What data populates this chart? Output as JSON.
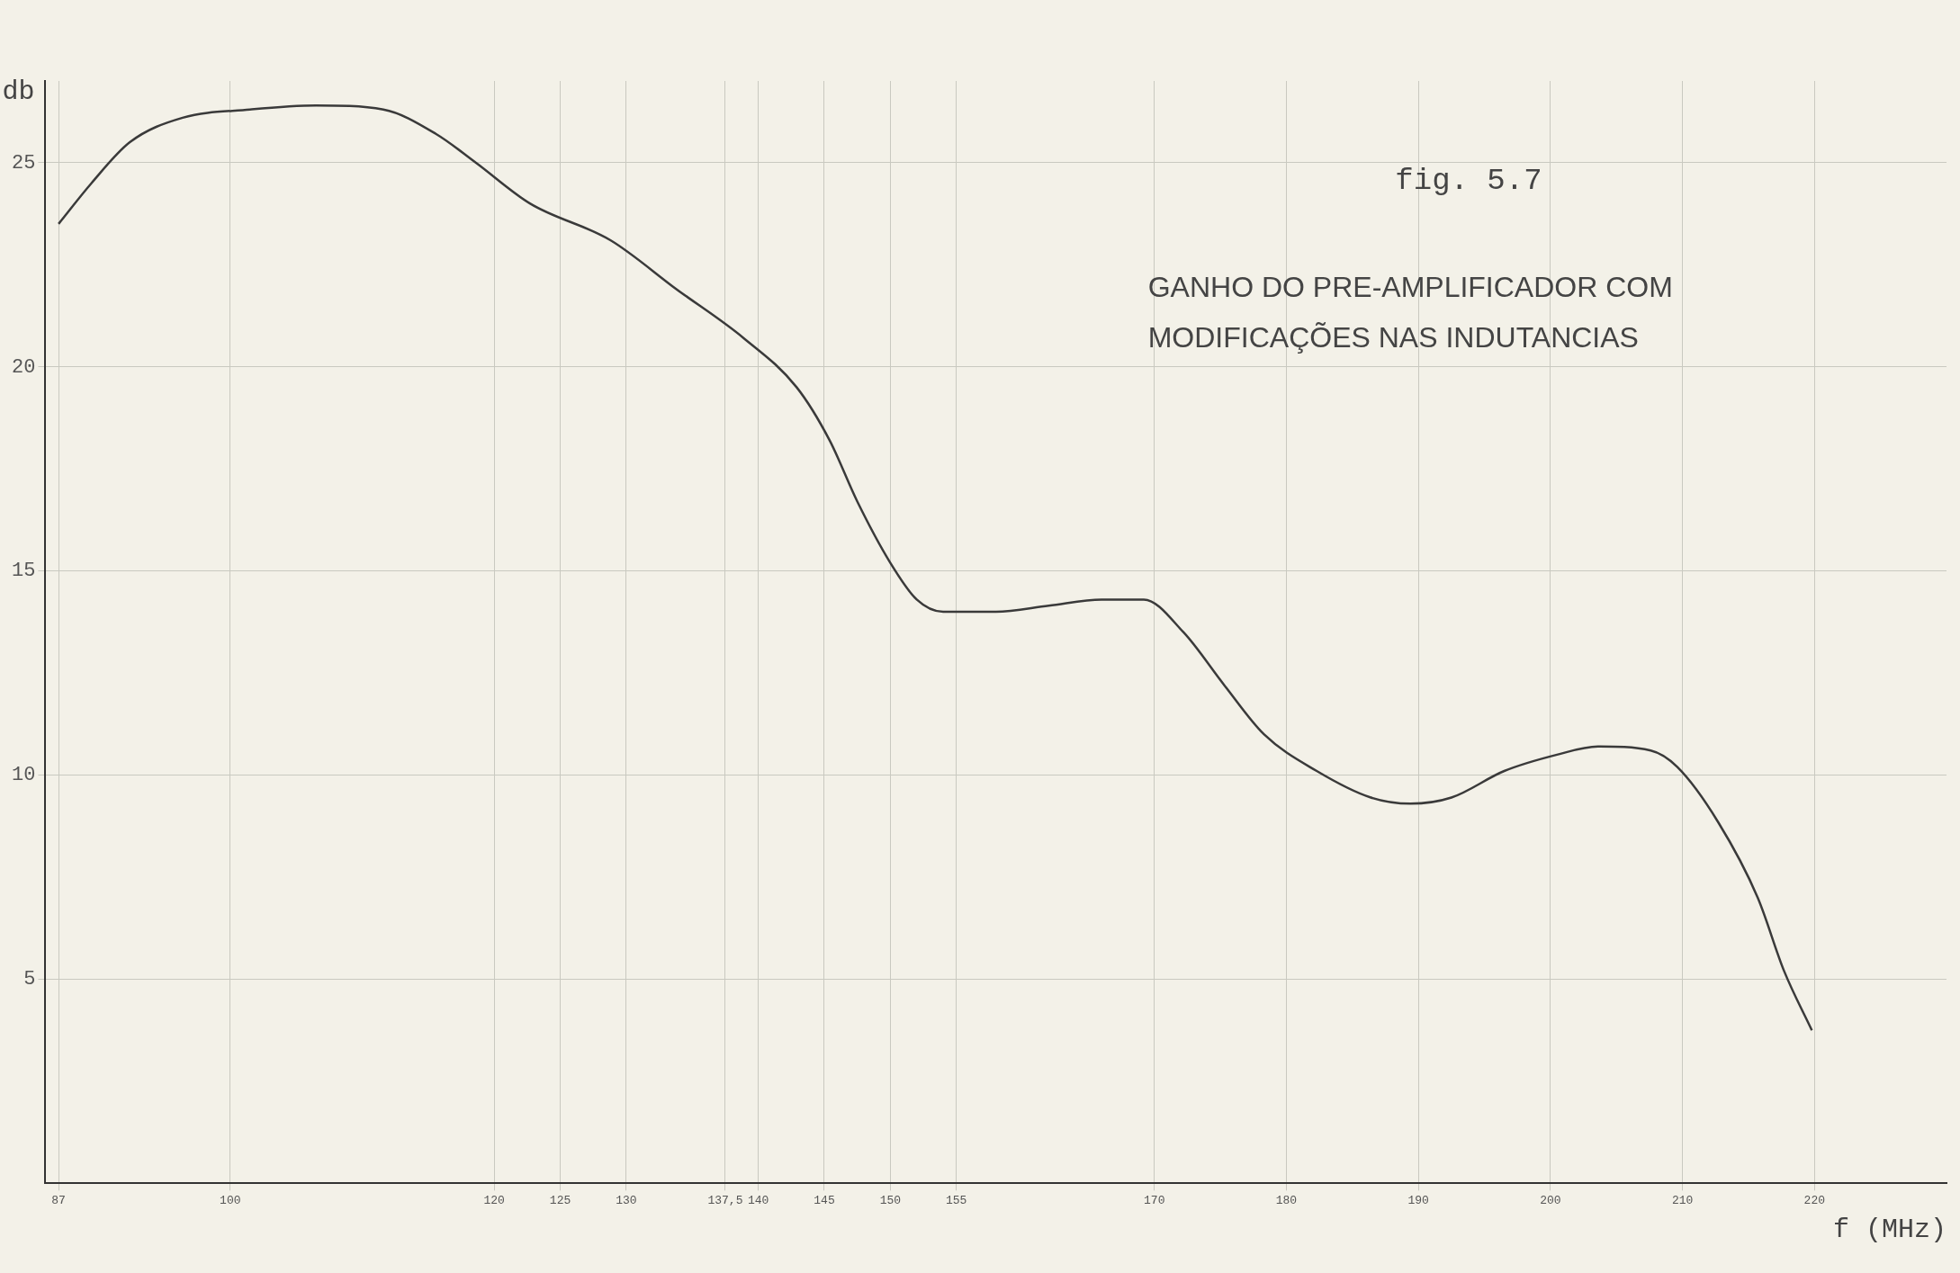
{
  "chart_data": {
    "type": "line",
    "title": "GANHO DO PRE-AMPLIFICADOR COM MODIFICAÇÕES NAS INDUTANCIAS",
    "annotations": [
      "fig. 5.7"
    ],
    "xlabel": "f (MHz)",
    "ylabel": "db",
    "x": [
      87,
      89.5,
      92.4,
      96.4,
      101.5,
      106.5,
      111.6,
      115.6,
      118.6,
      122.7,
      128.8,
      133.8,
      138.9,
      142.9,
      145.4,
      147.5,
      150,
      152,
      154,
      158,
      162,
      166,
      169.2,
      172.2,
      175.3,
      178.3,
      182.3,
      186.4,
      189.4,
      192.5,
      196.5,
      200.5,
      203.6,
      207.6,
      209.6,
      212.7,
      215.7,
      217.7,
      219.8
    ],
    "series": [
      {
        "color": "#3a3a3a",
        "values": [
          23.5,
          24.5,
          25.5,
          26.1,
          26.3,
          26.4,
          26.3,
          25.7,
          25.0,
          24.0,
          23.1,
          21.9,
          20.7,
          19.5,
          18.2,
          16.7,
          15.2,
          14.3,
          14.0,
          14.0,
          14.15,
          14.3,
          14.3,
          13.5,
          12.2,
          11.0,
          10.1,
          9.45,
          9.3,
          9.45,
          10.1,
          10.5,
          10.7,
          10.6,
          10.2,
          8.85,
          7.0,
          5.2,
          3.75
        ]
      }
    ],
    "xlim": [
      86,
      230
    ],
    "ylim": [
      0,
      27
    ],
    "xticks": [
      87,
      100,
      120,
      125,
      130,
      {
        "value": 137.5,
        "label": "137,5"
      },
      140,
      145,
      150,
      155,
      170,
      180,
      190,
      200,
      210,
      220
    ],
    "yticks": [
      5,
      10,
      15,
      20,
      25
    ],
    "grid": true,
    "legend": false,
    "marker": "none",
    "line_style": "solid"
  }
}
